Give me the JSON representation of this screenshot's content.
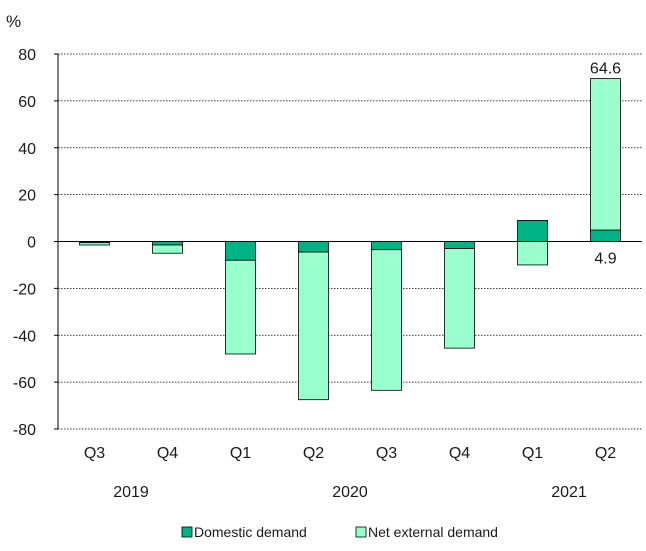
{
  "chart_data": {
    "type": "bar",
    "stacked": true,
    "unit": "%",
    "categories": [
      "Q3",
      "Q4",
      "Q1",
      "Q2",
      "Q3",
      "Q4",
      "Q1",
      "Q2"
    ],
    "groups": [
      {
        "label": "2019",
        "categories": [
          0,
          1
        ]
      },
      {
        "label": "2020",
        "categories": [
          2,
          3,
          4,
          5
        ]
      },
      {
        "label": "2021",
        "categories": [
          6,
          7
        ]
      }
    ],
    "series": [
      {
        "name": "Domestic demand",
        "color": "#00b386",
        "values": [
          -0.5,
          -1.5,
          -8.0,
          -4.5,
          -3.5,
          -3.0,
          9.0,
          4.9
        ]
      },
      {
        "name": "Net external demand",
        "color": "#99ffcc",
        "values": [
          -1.0,
          -3.5,
          -40.0,
          -63.0,
          -60.0,
          -42.5,
          -10.0,
          64.6
        ]
      }
    ],
    "ylim": [
      -80,
      80
    ],
    "yticks": [
      80,
      60,
      40,
      20,
      0,
      -20,
      -40,
      -60,
      -80
    ],
    "grid": "horizontal dotted",
    "legend": "bottom",
    "annotations": [
      {
        "text": "64.6",
        "category": 7,
        "position": "above"
      },
      {
        "text": "4.9",
        "category": 7,
        "position": "below"
      }
    ]
  }
}
